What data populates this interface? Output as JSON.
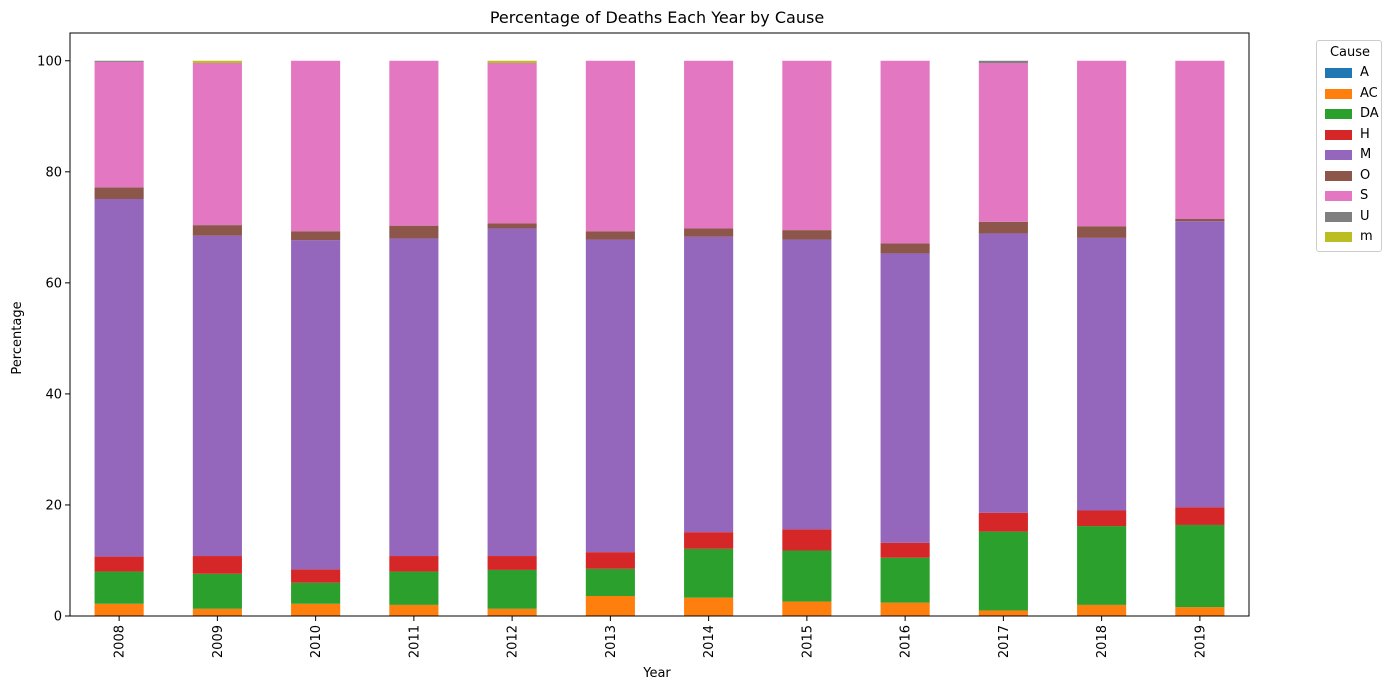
{
  "chart_data": {
    "type": "bar",
    "stacked": true,
    "title": "Percentage of Deaths Each Year by Cause",
    "xlabel": "Year",
    "ylabel": "Percentage",
    "ylim": [
      0,
      105
    ],
    "yticks": [
      0,
      20,
      40,
      60,
      80,
      100
    ],
    "categories": [
      "2008",
      "2009",
      "2010",
      "2011",
      "2012",
      "2013",
      "2014",
      "2015",
      "2016",
      "2017",
      "2018",
      "2019"
    ],
    "grid": false,
    "legend": {
      "title": "Cause",
      "placement": "outside-top-right"
    },
    "series": [
      {
        "name": "A",
        "color": "#1f77b4",
        "values": [
          0,
          0,
          0,
          0,
          0,
          0,
          0,
          0,
          0,
          0,
          0,
          0
        ]
      },
      {
        "name": "AC",
        "color": "#ff7f0e",
        "values": [
          2.2,
          1.3,
          2.2,
          2.0,
          1.3,
          3.6,
          3.3,
          2.6,
          2.4,
          1.0,
          2.0,
          1.6
        ]
      },
      {
        "name": "DA",
        "color": "#2ca02c",
        "values": [
          5.8,
          6.3,
          3.8,
          6.0,
          7.0,
          4.9,
          8.8,
          9.2,
          8.1,
          14.2,
          14.2,
          14.8
        ]
      },
      {
        "name": "H",
        "color": "#d62728",
        "values": [
          2.7,
          3.2,
          2.4,
          2.8,
          2.5,
          3.0,
          3.0,
          3.8,
          2.7,
          3.4,
          2.8,
          3.2
        ]
      },
      {
        "name": "M",
        "color": "#9467bd",
        "values": [
          64.4,
          57.7,
          59.3,
          57.2,
          59.0,
          56.3,
          53.2,
          52.2,
          52.1,
          50.3,
          49.1,
          51.5
        ]
      },
      {
        "name": "O",
        "color": "#8c564b",
        "values": [
          2.1,
          1.9,
          1.6,
          2.3,
          0.9,
          1.5,
          1.5,
          1.7,
          1.8,
          2.1,
          2.1,
          0.4
        ]
      },
      {
        "name": "S",
        "color": "#e377c2",
        "values": [
          22.6,
          29.2,
          30.7,
          29.7,
          28.9,
          30.7,
          30.2,
          30.5,
          32.9,
          28.6,
          29.8,
          28.5
        ]
      },
      {
        "name": "U",
        "color": "#7f7f7f",
        "values": [
          0.2,
          0,
          0,
          0,
          0,
          0,
          0,
          0,
          0,
          0.4,
          0,
          0
        ]
      },
      {
        "name": "m",
        "color": "#bcbd22",
        "values": [
          0,
          0.4,
          0,
          0,
          0.4,
          0,
          0,
          0,
          0,
          0,
          0,
          0
        ]
      }
    ]
  }
}
